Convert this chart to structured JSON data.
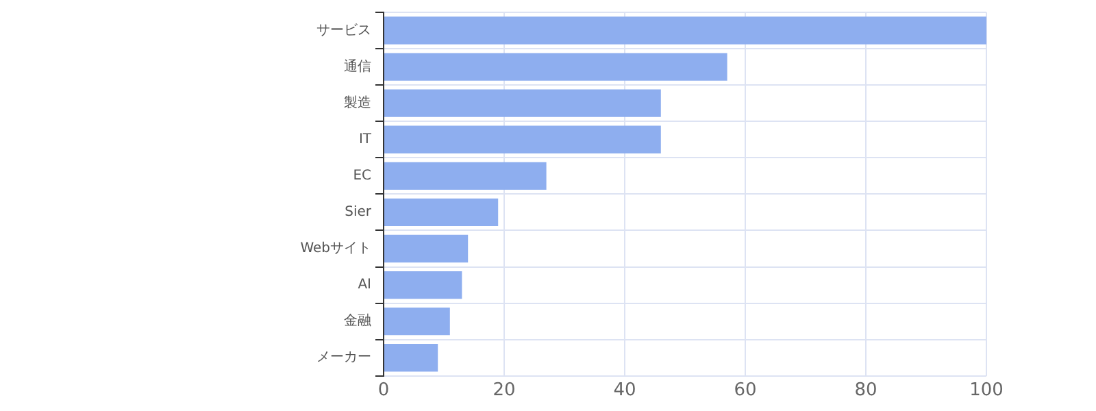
{
  "chart_data": {
    "type": "bar",
    "orientation": "horizontal",
    "categories": [
      "サービス",
      "通信",
      "製造",
      "IT",
      "EC",
      "Sier",
      "Webサイト",
      "AI",
      "金融",
      "メーカー"
    ],
    "values": [
      100,
      57,
      46,
      46,
      27,
      19,
      14,
      13,
      11,
      9
    ],
    "color": "#8eaeef",
    "xlim": [
      0,
      100
    ],
    "xticks": [
      0,
      20,
      40,
      60,
      80,
      100
    ],
    "grid": true,
    "legend": false
  }
}
